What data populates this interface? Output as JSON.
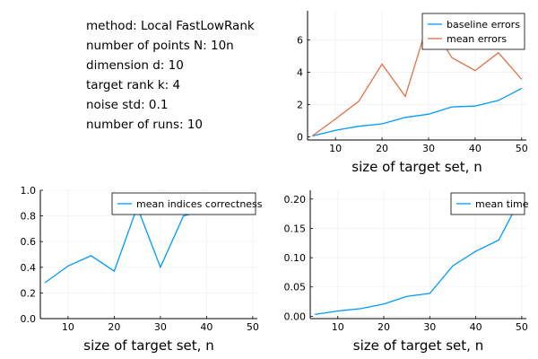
{
  "info": {
    "lines": [
      "method: Local FastLowRank",
      "number of points N: 10n",
      "dimension d: 10",
      "target rank k: 4",
      "noise std: 0.1",
      "number of runs: 10"
    ]
  },
  "colors": {
    "series1": "#009AFA",
    "series2": "#E36F47",
    "grid": "#ececec",
    "axis": "#000000"
  },
  "chart_data": [
    {
      "type": "line",
      "title": "",
      "xlabel": "size of target set, n",
      "ylabel": "",
      "x": [
        5,
        10,
        15,
        20,
        25,
        30,
        35,
        40,
        45,
        50
      ],
      "xlim": [
        4,
        51
      ],
      "ylim": [
        -0.2,
        7.8
      ],
      "xticks": [
        10,
        20,
        30,
        40,
        50
      ],
      "yticks": [
        0,
        2,
        4,
        6
      ],
      "yticklabels": [
        "0",
        "2",
        "4",
        "6"
      ],
      "grid": true,
      "legend": "top-right",
      "series": [
        {
          "name": "baseline errors",
          "values": [
            0.05,
            0.4,
            0.65,
            0.8,
            1.2,
            1.4,
            1.85,
            1.9,
            2.25,
            3.0
          ]
        },
        {
          "name": "mean errors",
          "values": [
            0.05,
            1.1,
            2.2,
            4.5,
            2.5,
            7.2,
            4.9,
            4.1,
            5.2,
            3.55
          ]
        }
      ]
    },
    {
      "type": "line",
      "title": "",
      "xlabel": "size of target set, n",
      "ylabel": "",
      "x": [
        5,
        10,
        15,
        20,
        25,
        30,
        35,
        40,
        45,
        50
      ],
      "xlim": [
        4,
        51
      ],
      "ylim": [
        0,
        1.0
      ],
      "xticks": [
        10,
        20,
        30,
        40,
        50
      ],
      "yticks": [
        0.0,
        0.2,
        0.4,
        0.6,
        0.8,
        1.0
      ],
      "yticklabels": [
        "0.0",
        "0.2",
        "0.4",
        "0.6",
        "0.8",
        "1.0"
      ],
      "grid": true,
      "legend": "top-right",
      "series": [
        {
          "name": "mean indices correctness",
          "values": [
            0.28,
            0.41,
            0.49,
            0.37,
            0.87,
            0.4,
            0.8,
            0.85,
            0.9,
            0.97
          ]
        }
      ]
    },
    {
      "type": "line",
      "title": "",
      "xlabel": "size of target set, n",
      "ylabel": "",
      "x": [
        5,
        10,
        15,
        20,
        25,
        30,
        35,
        40,
        45,
        50
      ],
      "xlim": [
        4,
        51
      ],
      "ylim": [
        -0.004,
        0.215
      ],
      "xticks": [
        10,
        20,
        30,
        40,
        50
      ],
      "yticks": [
        0.0,
        0.05,
        0.1,
        0.15,
        0.2
      ],
      "yticklabels": [
        "0.00",
        "0.05",
        "0.10",
        "0.15",
        "0.20"
      ],
      "grid": true,
      "legend": "top-right",
      "series": [
        {
          "name": "mean time",
          "values": [
            0.003,
            0.009,
            0.013,
            0.021,
            0.034,
            0.039,
            0.086,
            0.111,
            0.13,
            0.205
          ]
        }
      ]
    }
  ]
}
